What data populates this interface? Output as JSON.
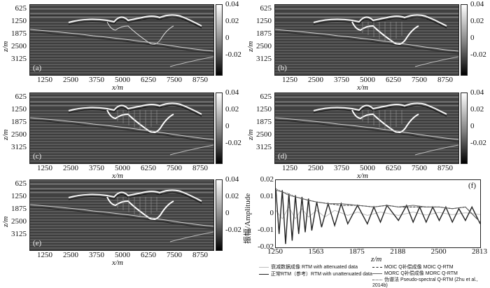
{
  "panels": [
    {
      "label": "(a)"
    },
    {
      "label": "(b)"
    },
    {
      "label": "(c)"
    },
    {
      "label": "(d)"
    },
    {
      "label": "(e)"
    }
  ],
  "axes": {
    "ylabel": "z/m",
    "xlabel": "x/m",
    "yticks": [
      "625",
      "1250",
      "1875",
      "2500",
      "3125"
    ],
    "xticks": [
      "1250",
      "2500",
      "3750",
      "5000",
      "6250",
      "7500",
      "8750"
    ]
  },
  "colorbar": {
    "ticks": [
      "0.04",
      "0.02",
      "0",
      "-0.02"
    ]
  },
  "trace": {
    "label": "(f)",
    "ylabel": "振幅/Amplitude",
    "xlabel": "z/m",
    "yticks": [
      "0.02",
      "0.01",
      "0",
      "-0.01",
      "-0.02"
    ],
    "xticks": [
      "1250",
      "1563",
      "1875",
      "2188",
      "2500",
      "2813"
    ]
  },
  "legend": {
    "attenuated": "衰减数据成像 RTM with attenuated data",
    "reference": "正常RTM（参考）RTM with unattenuated data",
    "moic": "MOIC Q补偿成像 MOIC Q-RTM",
    "morc": "MORC Q补偿成像 MORC Q-RTM",
    "pseudo": "伪谱法 Pseudo-spectral Q-RTM (Zhu et al., 2014b)"
  },
  "chart_data": {
    "type": "line",
    "title": "",
    "xlabel": "z/m",
    "ylabel": "振幅/Amplitude",
    "xlim": [
      1250,
      2813
    ],
    "ylim": [
      -0.02,
      0.02
    ],
    "series": [
      {
        "name": "衰减数据成像 RTM with attenuated data",
        "color": "#bdbdbd",
        "style": "solid",
        "x": [
          1250,
          1300,
          1350,
          1400,
          1450,
          1500,
          1563,
          1625,
          1700,
          1800,
          1875,
          1950,
          2050,
          2188,
          2300,
          2400,
          2500,
          2600,
          2700,
          2813
        ],
        "values": [
          0.002,
          -0.003,
          0.004,
          -0.003,
          0.003,
          -0.002,
          0.002,
          -0.002,
          0.002,
          -0.001,
          0.001,
          -0.001,
          0.001,
          -0.001,
          0.001,
          -0.0008,
          0.0008,
          -0.0006,
          0.0006,
          -0.0005
        ]
      },
      {
        "name": "正常RTM（参考）RTM with unattenuated data",
        "color": "#222222",
        "style": "solid",
        "x": [
          1250,
          1275,
          1300,
          1325,
          1350,
          1375,
          1400,
          1425,
          1450,
          1475,
          1500,
          1525,
          1563,
          1600,
          1650,
          1700,
          1750,
          1800,
          1875,
          1950,
          2000,
          2050,
          2100,
          2188,
          2250,
          2300,
          2350,
          2400,
          2450,
          2500,
          2550,
          2600,
          2650,
          2700,
          2750,
          2813
        ],
        "values": [
          0.015,
          -0.012,
          0.014,
          -0.018,
          0.012,
          -0.016,
          0.011,
          -0.012,
          0.01,
          -0.011,
          0.009,
          -0.01,
          0.007,
          -0.008,
          0.006,
          -0.007,
          0.006,
          -0.006,
          0.005,
          -0.006,
          0.004,
          -0.005,
          0.005,
          -0.004,
          0.005,
          -0.005,
          0.004,
          -0.005,
          0.004,
          -0.004,
          0.004,
          -0.005,
          0.003,
          -0.004,
          0.004,
          -0.006
        ]
      },
      {
        "name": "MOIC Q补偿成像 MOIC Q-RTM",
        "color": "#222222",
        "style": "dashed",
        "x": [
          1250,
          1300,
          1350,
          1400,
          1450,
          1500,
          1563,
          1650,
          1750,
          1875,
          2000,
          2100,
          2188,
          2300,
          2400,
          2500,
          2600,
          2700,
          2813
        ],
        "values": [
          0.014,
          0.013,
          0.011,
          0.01,
          0.009,
          0.008,
          0.007,
          0.006,
          0.005,
          0.005,
          0.004,
          0.005,
          0.004,
          0.004,
          0.004,
          0.004,
          0.003,
          0.004,
          -0.005
        ]
      },
      {
        "name": "MORC Q补偿成像 MORC Q-RTM",
        "color": "#666666",
        "style": "solid",
        "x": [
          1250,
          1300,
          1350,
          1400,
          1450,
          1500,
          1563,
          1650,
          1750,
          1875,
          2000,
          2100,
          2188,
          2300,
          2400,
          2500,
          2600,
          2700,
          2813
        ],
        "values": [
          0.014,
          0.013,
          0.011,
          0.01,
          0.009,
          0.008,
          0.007,
          0.006,
          0.006,
          0.005,
          0.004,
          0.005,
          0.004,
          0.005,
          0.004,
          0.004,
          0.003,
          0.004,
          -0.005
        ]
      },
      {
        "name": "伪谱法 Pseudo-spectral Q-RTM (Zhu et al., 2014b)",
        "color": "#444444",
        "style": "dotted",
        "x": [
          1250,
          1300,
          1350,
          1400,
          1450,
          1500,
          1563,
          1650,
          1750,
          1875,
          2000,
          2100,
          2188,
          2300,
          2400,
          2500,
          2600,
          2700,
          2813
        ],
        "values": [
          0.015,
          0.013,
          0.012,
          0.01,
          0.009,
          0.008,
          0.007,
          0.006,
          0.005,
          0.005,
          0.004,
          0.005,
          0.004,
          0.004,
          0.004,
          0.004,
          0.003,
          0.004,
          -0.005
        ]
      }
    ]
  }
}
